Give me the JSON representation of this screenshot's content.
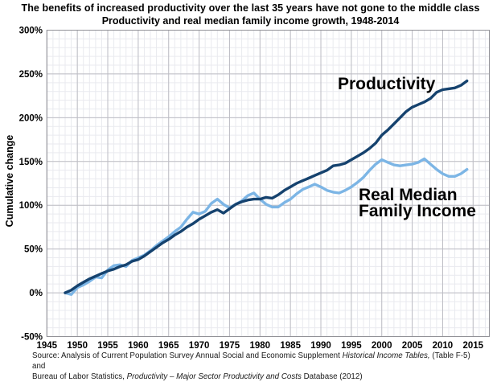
{
  "header": {
    "title": "The benefits of increased productivity over the last 35 years have not gone to the middle class",
    "subtitle": "Productivity and real median family income growth, 1948-2014"
  },
  "axes": {
    "y_title": "Cumulative change",
    "x_ticks": [
      "1945",
      "1950",
      "1955",
      "1960",
      "1965",
      "1970",
      "1975",
      "1980",
      "1985",
      "1990",
      "1995",
      "2000",
      "2005",
      "2010",
      "2015"
    ],
    "y_ticks": [
      "300%",
      "250%",
      "200%",
      "150%",
      "100%",
      "50%",
      "0%",
      "-50%"
    ]
  },
  "annotations": {
    "productivity": "Productivity",
    "median_line1": "Real Median",
    "median_line2": "Family Income"
  },
  "source": {
    "lines": [
      [
        {
          "t": "Source:  Analysis of Current Population Survey Annual Social and Economic Supplement ",
          "i": false
        },
        {
          "t": "Historical Income Tables,",
          "i": true
        },
        {
          "t": " (Table F-5) and",
          "i": false
        }
      ],
      [
        {
          "t": "Bureau of Labor Statistics, ",
          "i": false
        },
        {
          "t": "Productivity – Major Sector Productivity and Costs",
          "i": true
        },
        {
          "t": " Database (2012)",
          "i": false
        }
      ]
    ]
  },
  "colors": {
    "productivity_line": "#15426e",
    "median_income_line": "#7cb5e5",
    "grid_minor": "#e9eaef",
    "grid_major": "#bdbdc4",
    "plot_border": "#919197",
    "text": "#000000"
  },
  "chart_data": {
    "type": "line",
    "title": "The benefits of increased productivity over the last 35 years have not gone to the middle class",
    "subtitle": "Productivity and real median family income growth, 1948-2014",
    "xlabel": "",
    "ylabel": "Cumulative change",
    "x_tick_range": [
      1945,
      2015
    ],
    "x_tick_step": 5,
    "x_minor_step": 1,
    "ylim": [
      -50,
      300
    ],
    "y_tick_step": 50,
    "y_minor_step": 10,
    "y_unit": "%",
    "grid": "on",
    "legend_position": "inline-annotations",
    "x": [
      1948,
      1949,
      1950,
      1951,
      1952,
      1953,
      1954,
      1955,
      1956,
      1957,
      1958,
      1959,
      1960,
      1961,
      1962,
      1963,
      1964,
      1965,
      1966,
      1967,
      1968,
      1969,
      1970,
      1971,
      1972,
      1973,
      1974,
      1975,
      1976,
      1977,
      1978,
      1979,
      1980,
      1981,
      1982,
      1983,
      1984,
      1985,
      1986,
      1987,
      1988,
      1989,
      1990,
      1991,
      1992,
      1993,
      1994,
      1995,
      1996,
      1997,
      1998,
      1999,
      2000,
      2001,
      2002,
      2003,
      2004,
      2005,
      2006,
      2007,
      2008,
      2009,
      2010,
      2011,
      2012,
      2013,
      2014
    ],
    "series": [
      {
        "name": "Productivity",
        "color": "#15426e",
        "values": [
          0,
          3,
          8,
          12,
          16,
          19,
          22,
          25,
          27,
          30,
          32,
          36,
          38,
          42,
          47,
          52,
          57,
          61,
          66,
          70,
          75,
          79,
          84,
          88,
          92,
          95,
          91,
          96,
          101,
          104,
          106,
          107,
          107,
          109,
          108,
          112,
          117,
          121,
          125,
          128,
          131,
          134,
          137,
          140,
          145,
          146,
          148,
          152,
          156,
          160,
          165,
          171,
          180,
          186,
          193,
          200,
          207,
          212,
          215,
          218,
          222,
          229,
          232,
          233,
          234,
          237,
          242
        ]
      },
      {
        "name": "Real Median Family Income",
        "color": "#7cb5e5",
        "values": [
          0,
          -2,
          6,
          9,
          13,
          18,
          17,
          26,
          31,
          32,
          30,
          37,
          40,
          43,
          48,
          54,
          59,
          64,
          70,
          75,
          84,
          92,
          90,
          93,
          102,
          107,
          101,
          97,
          101,
          105,
          111,
          114,
          107,
          101,
          98,
          98,
          103,
          107,
          113,
          118,
          121,
          124,
          121,
          117,
          115,
          114,
          117,
          121,
          126,
          132,
          140,
          147,
          152,
          149,
          146,
          145,
          146,
          147,
          149,
          153,
          147,
          141,
          136,
          133,
          133,
          136,
          141
        ]
      }
    ]
  }
}
